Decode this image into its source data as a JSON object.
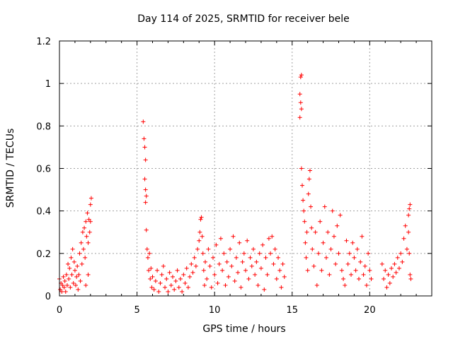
{
  "chart_data": {
    "type": "scatter",
    "title": "Day 114 of 2025, SRMTID for receiver bele",
    "xlabel": "GPS time / hours",
    "ylabel": "SRMTID / TECUs",
    "xlim": [
      0,
      24
    ],
    "ylim": [
      0,
      1.2
    ],
    "x_ticks": [
      {
        "value": 0,
        "label": "0"
      },
      {
        "value": 5,
        "label": "5"
      },
      {
        "value": 10,
        "label": "10"
      },
      {
        "value": 15,
        "label": "15"
      },
      {
        "value": 20,
        "label": "20"
      }
    ],
    "y_ticks": [
      {
        "value": 0,
        "label": "0"
      },
      {
        "value": 0.2,
        "label": "0.2"
      },
      {
        "value": 0.4,
        "label": "0.4"
      },
      {
        "value": 0.6,
        "label": "0.6"
      },
      {
        "value": 0.8,
        "label": "0.8"
      },
      {
        "value": 1.0,
        "label": "1"
      },
      {
        "value": 1.2,
        "label": "1.2"
      }
    ],
    "grid": true,
    "marker": "+",
    "series": [
      {
        "name": "SRMTID",
        "color": "#ff0000",
        "points": [
          [
            0.0,
            0.08
          ],
          [
            0.05,
            0.03
          ],
          [
            0.1,
            0.06
          ],
          [
            0.15,
            0.02
          ],
          [
            0.2,
            0.05
          ],
          [
            0.25,
            0.09
          ],
          [
            0.3,
            0.04
          ],
          [
            0.35,
            0.07
          ],
          [
            0.4,
            0.02
          ],
          [
            0.45,
            0.1
          ],
          [
            0.5,
            0.05
          ],
          [
            0.55,
            0.15
          ],
          [
            0.6,
            0.08
          ],
          [
            0.65,
            0.13
          ],
          [
            0.7,
            0.04
          ],
          [
            0.75,
            0.18
          ],
          [
            0.8,
            0.1
          ],
          [
            0.85,
            0.22
          ],
          [
            0.9,
            0.06
          ],
          [
            0.95,
            0.16
          ],
          [
            1.0,
            0.12
          ],
          [
            1.05,
            0.05
          ],
          [
            1.1,
            0.09
          ],
          [
            1.15,
            0.14
          ],
          [
            1.2,
            0.03
          ],
          [
            1.25,
            0.1
          ],
          [
            1.3,
            0.2
          ],
          [
            1.35,
            0.07
          ],
          [
            1.4,
            0.25
          ],
          [
            1.45,
            0.15
          ],
          [
            1.5,
            0.3
          ],
          [
            1.55,
            0.22
          ],
          [
            1.6,
            0.32
          ],
          [
            1.65,
            0.18
          ],
          [
            1.7,
            0.35
          ],
          [
            1.75,
            0.28
          ],
          [
            1.8,
            0.39
          ],
          [
            1.85,
            0.25
          ],
          [
            1.9,
            0.36
          ],
          [
            1.95,
            0.3
          ],
          [
            2.0,
            0.43
          ],
          [
            2.05,
            0.46
          ],
          [
            2.0,
            0.35
          ],
          [
            1.85,
            0.1
          ],
          [
            1.7,
            0.05
          ],
          [
            5.4,
            0.82
          ],
          [
            5.45,
            0.74
          ],
          [
            5.5,
            0.7
          ],
          [
            5.55,
            0.64
          ],
          [
            5.5,
            0.55
          ],
          [
            5.55,
            0.5
          ],
          [
            5.6,
            0.47
          ],
          [
            5.55,
            0.44
          ],
          [
            5.6,
            0.31
          ],
          [
            5.65,
            0.22
          ],
          [
            5.7,
            0.18
          ],
          [
            5.75,
            0.12
          ],
          [
            5.8,
            0.2
          ],
          [
            5.85,
            0.08
          ],
          [
            5.9,
            0.13
          ],
          [
            5.95,
            0.04
          ],
          [
            6.0,
            0.09
          ],
          [
            6.1,
            0.03
          ],
          [
            6.2,
            0.07
          ],
          [
            6.3,
            0.12
          ],
          [
            6.4,
            0.02
          ],
          [
            6.5,
            0.06
          ],
          [
            6.6,
            0.1
          ],
          [
            6.7,
            0.14
          ],
          [
            6.8,
            0.04
          ],
          [
            6.9,
            0.08
          ],
          [
            7.0,
            0.02
          ],
          [
            7.1,
            0.11
          ],
          [
            7.2,
            0.05
          ],
          [
            7.3,
            0.09
          ],
          [
            7.4,
            0.03
          ],
          [
            7.5,
            0.07
          ],
          [
            7.6,
            0.12
          ],
          [
            7.7,
            0.04
          ],
          [
            7.8,
            0.08
          ],
          [
            7.9,
            0.02
          ],
          [
            8.0,
            0.1
          ],
          [
            8.1,
            0.06
          ],
          [
            8.2,
            0.13
          ],
          [
            8.3,
            0.04
          ],
          [
            8.4,
            0.09
          ],
          [
            8.5,
            0.15
          ],
          [
            8.6,
            0.11
          ],
          [
            8.7,
            0.18
          ],
          [
            8.8,
            0.14
          ],
          [
            8.9,
            0.22
          ],
          [
            9.0,
            0.26
          ],
          [
            9.05,
            0.3
          ],
          [
            9.1,
            0.36
          ],
          [
            9.15,
            0.37
          ],
          [
            9.2,
            0.28
          ],
          [
            9.25,
            0.2
          ],
          [
            9.3,
            0.12
          ],
          [
            9.35,
            0.05
          ],
          [
            9.4,
            0.16
          ],
          [
            9.5,
            0.08
          ],
          [
            9.6,
            0.22
          ],
          [
            9.7,
            0.14
          ],
          [
            9.8,
            0.04
          ],
          [
            9.9,
            0.18
          ],
          [
            10.0,
            0.1
          ],
          [
            10.1,
            0.24
          ],
          [
            10.2,
            0.06
          ],
          [
            10.3,
            0.15
          ],
          [
            10.4,
            0.27
          ],
          [
            10.5,
            0.12
          ],
          [
            10.6,
            0.2
          ],
          [
            10.7,
            0.05
          ],
          [
            10.8,
            0.16
          ],
          [
            10.9,
            0.09
          ],
          [
            11.0,
            0.22
          ],
          [
            11.1,
            0.14
          ],
          [
            11.2,
            0.28
          ],
          [
            11.3,
            0.07
          ],
          [
            11.4,
            0.18
          ],
          [
            11.5,
            0.11
          ],
          [
            11.6,
            0.25
          ],
          [
            11.7,
            0.04
          ],
          [
            11.8,
            0.16
          ],
          [
            11.9,
            0.2
          ],
          [
            12.0,
            0.12
          ],
          [
            12.1,
            0.26
          ],
          [
            12.2,
            0.08
          ],
          [
            12.3,
            0.18
          ],
          [
            12.4,
            0.14
          ],
          [
            12.5,
            0.22
          ],
          [
            12.6,
            0.1
          ],
          [
            12.7,
            0.16
          ],
          [
            12.8,
            0.05
          ],
          [
            12.9,
            0.2
          ],
          [
            13.0,
            0.13
          ],
          [
            13.1,
            0.24
          ],
          [
            13.2,
            0.03
          ],
          [
            13.3,
            0.18
          ],
          [
            13.4,
            0.1
          ],
          [
            13.5,
            0.27
          ],
          [
            13.6,
            0.2
          ],
          [
            13.7,
            0.28
          ],
          [
            13.8,
            0.15
          ],
          [
            13.9,
            0.22
          ],
          [
            14.0,
            0.08
          ],
          [
            14.1,
            0.18
          ],
          [
            14.2,
            0.12
          ],
          [
            14.3,
            0.04
          ],
          [
            14.4,
            0.15
          ],
          [
            14.5,
            0.09
          ],
          [
            15.55,
            1.03
          ],
          [
            15.6,
            1.04
          ],
          [
            15.5,
            0.95
          ],
          [
            15.55,
            0.91
          ],
          [
            15.6,
            0.88
          ],
          [
            15.5,
            0.84
          ],
          [
            15.6,
            0.6
          ],
          [
            15.65,
            0.52
          ],
          [
            15.7,
            0.45
          ],
          [
            15.75,
            0.4
          ],
          [
            15.8,
            0.35
          ],
          [
            15.85,
            0.25
          ],
          [
            15.9,
            0.18
          ],
          [
            15.95,
            0.3
          ],
          [
            16.0,
            0.12
          ],
          [
            16.05,
            0.48
          ],
          [
            16.1,
            0.55
          ],
          [
            16.15,
            0.59
          ],
          [
            16.2,
            0.42
          ],
          [
            16.25,
            0.32
          ],
          [
            16.3,
            0.22
          ],
          [
            16.4,
            0.14
          ],
          [
            16.5,
            0.3
          ],
          [
            16.6,
            0.05
          ],
          [
            16.7,
            0.2
          ],
          [
            16.8,
            0.35
          ],
          [
            16.9,
            0.12
          ],
          [
            17.0,
            0.25
          ],
          [
            17.1,
            0.42
          ],
          [
            17.2,
            0.18
          ],
          [
            17.3,
            0.3
          ],
          [
            17.4,
            0.1
          ],
          [
            17.5,
            0.22
          ],
          [
            17.6,
            0.4
          ],
          [
            17.7,
            0.28
          ],
          [
            17.8,
            0.15
          ],
          [
            17.9,
            0.33
          ],
          [
            18.0,
            0.2
          ],
          [
            18.1,
            0.38
          ],
          [
            18.2,
            0.12
          ],
          [
            18.3,
            0.08
          ],
          [
            18.4,
            0.05
          ],
          [
            18.5,
            0.26
          ],
          [
            18.6,
            0.15
          ],
          [
            18.7,
            0.2
          ],
          [
            18.8,
            0.1
          ],
          [
            18.9,
            0.25
          ],
          [
            19.0,
            0.18
          ],
          [
            19.1,
            0.12
          ],
          [
            19.2,
            0.22
          ],
          [
            19.3,
            0.08
          ],
          [
            19.4,
            0.16
          ],
          [
            19.5,
            0.28
          ],
          [
            19.6,
            0.1
          ],
          [
            19.7,
            0.14
          ],
          [
            19.8,
            0.05
          ],
          [
            19.9,
            0.2
          ],
          [
            20.0,
            0.12
          ],
          [
            20.1,
            0.08
          ],
          [
            20.8,
            0.15
          ],
          [
            20.9,
            0.08
          ],
          [
            21.0,
            0.12
          ],
          [
            21.1,
            0.04
          ],
          [
            21.2,
            0.1
          ],
          [
            21.3,
            0.06
          ],
          [
            21.4,
            0.13
          ],
          [
            21.5,
            0.09
          ],
          [
            21.6,
            0.15
          ],
          [
            21.7,
            0.11
          ],
          [
            21.8,
            0.18
          ],
          [
            21.9,
            0.13
          ],
          [
            22.0,
            0.2
          ],
          [
            22.1,
            0.16
          ],
          [
            22.2,
            0.27
          ],
          [
            22.3,
            0.33
          ],
          [
            22.4,
            0.22
          ],
          [
            22.5,
            0.38
          ],
          [
            22.55,
            0.41
          ],
          [
            22.6,
            0.43
          ],
          [
            22.5,
            0.3
          ],
          [
            22.55,
            0.2
          ],
          [
            22.6,
            0.1
          ],
          [
            22.65,
            0.08
          ]
        ]
      }
    ]
  }
}
